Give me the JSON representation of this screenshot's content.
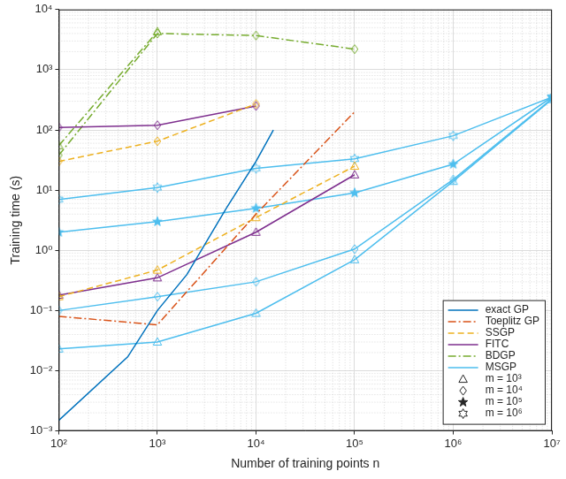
{
  "chart_data": {
    "type": "line",
    "xlabel": "Number of training points n",
    "ylabel": "Training time (s)",
    "log": true,
    "grid": true,
    "legend": "lower right",
    "xlim": [
      100,
      10000000
    ],
    "ylim": [
      0.001,
      10000
    ],
    "xticks": [
      {
        "value": 100,
        "label": "10²"
      },
      {
        "value": 1000,
        "label": "10³"
      },
      {
        "value": 10000,
        "label": "10⁴"
      },
      {
        "value": 100000,
        "label": "10⁵"
      },
      {
        "value": 1000000,
        "label": "10⁶"
      },
      {
        "value": 10000000,
        "label": "10⁷"
      }
    ],
    "yticks": [
      {
        "value": 0.001,
        "label": "10⁻³"
      },
      {
        "value": 0.01,
        "label": "10⁻²"
      },
      {
        "value": 0.1,
        "label": "10⁻¹"
      },
      {
        "value": 1,
        "label": "10⁰"
      },
      {
        "value": 10,
        "label": "10¹"
      },
      {
        "value": 100,
        "label": "10²"
      },
      {
        "value": 1000,
        "label": "10³"
      },
      {
        "value": 10000,
        "label": "10⁴"
      }
    ],
    "series": [
      {
        "name": "exact GP",
        "color": "#0072bd",
        "line_style": "solid",
        "marker": "none",
        "x": [
          100,
          500,
          1000,
          2000,
          5000,
          10000,
          15000
        ],
        "values": [
          0.0015,
          0.017,
          0.1,
          0.4,
          5,
          30,
          100
        ]
      },
      {
        "name": "Toeplitz GP",
        "color": "#d95319",
        "line_style": "dashdot",
        "marker": "none",
        "x": [
          100,
          1000,
          10000,
          100000
        ],
        "values": [
          0.08,
          0.058,
          4,
          200
        ]
      },
      {
        "name": "SSGP",
        "color": "#edb120",
        "line_style": "dashed",
        "marker": "diamond",
        "x": [
          100,
          1000,
          10000
        ],
        "values": [
          30,
          65,
          270
        ]
      },
      {
        "name": "SSGP",
        "color": "#edb120",
        "line_style": "dashed",
        "marker": "triangle",
        "x": [
          100,
          1000,
          10000,
          100000
        ],
        "values": [
          0.17,
          0.47,
          3.5,
          25
        ]
      },
      {
        "name": "FITC",
        "color": "#7e2f8e",
        "line_style": "solid",
        "marker": "diamond",
        "x": [
          100,
          1000,
          10000
        ],
        "values": [
          110,
          120,
          250
        ]
      },
      {
        "name": "FITC",
        "color": "#7e2f8e",
        "line_style": "solid",
        "marker": "triangle",
        "x": [
          100,
          1000,
          10000,
          100000
        ],
        "values": [
          0.18,
          0.35,
          2,
          18
        ]
      },
      {
        "name": "BDGP",
        "color": "#77ac30",
        "line_style": "dashdot",
        "marker": "triangle",
        "x": [
          100,
          1000
        ],
        "values": [
          55,
          4300
        ]
      },
      {
        "name": "BDGP",
        "color": "#77ac30",
        "line_style": "dashdot",
        "marker": "diamond",
        "x": [
          100,
          1000,
          10000,
          100000
        ],
        "values": [
          38,
          4000,
          3700,
          2200
        ]
      },
      {
        "name": "MSGP",
        "color": "#4dbeee",
        "line_style": "solid",
        "marker": "hexagram",
        "x": [
          100,
          1000,
          10000,
          100000,
          1000000,
          10000000
        ],
        "values": [
          7,
          11,
          23,
          33,
          80,
          350
        ]
      },
      {
        "name": "MSGP",
        "color": "#4dbeee",
        "line_style": "solid",
        "marker": "pentagram",
        "x": [
          100,
          1000,
          10000,
          100000,
          1000000,
          10000000
        ],
        "values": [
          2,
          3,
          5,
          9,
          27,
          350
        ]
      },
      {
        "name": "MSGP",
        "color": "#4dbeee",
        "line_style": "solid",
        "marker": "diamond",
        "x": [
          100,
          1000,
          10000,
          100000,
          1000000,
          10000000
        ],
        "values": [
          0.1,
          0.17,
          0.3,
          1.05,
          15,
          330
        ]
      },
      {
        "name": "MSGP",
        "color": "#4dbeee",
        "line_style": "solid",
        "marker": "triangle",
        "x": [
          100,
          1000,
          10000,
          100000,
          1000000,
          10000000
        ],
        "values": [
          0.023,
          0.03,
          0.09,
          0.7,
          14,
          320
        ]
      }
    ],
    "marker_legend": [
      {
        "label": "m = 10³",
        "marker": "triangle"
      },
      {
        "label": "m = 10⁴",
        "marker": "diamond"
      },
      {
        "label": "m = 10⁵",
        "marker": "pentagram"
      },
      {
        "label": "m = 10⁶",
        "marker": "hexagram"
      }
    ]
  }
}
